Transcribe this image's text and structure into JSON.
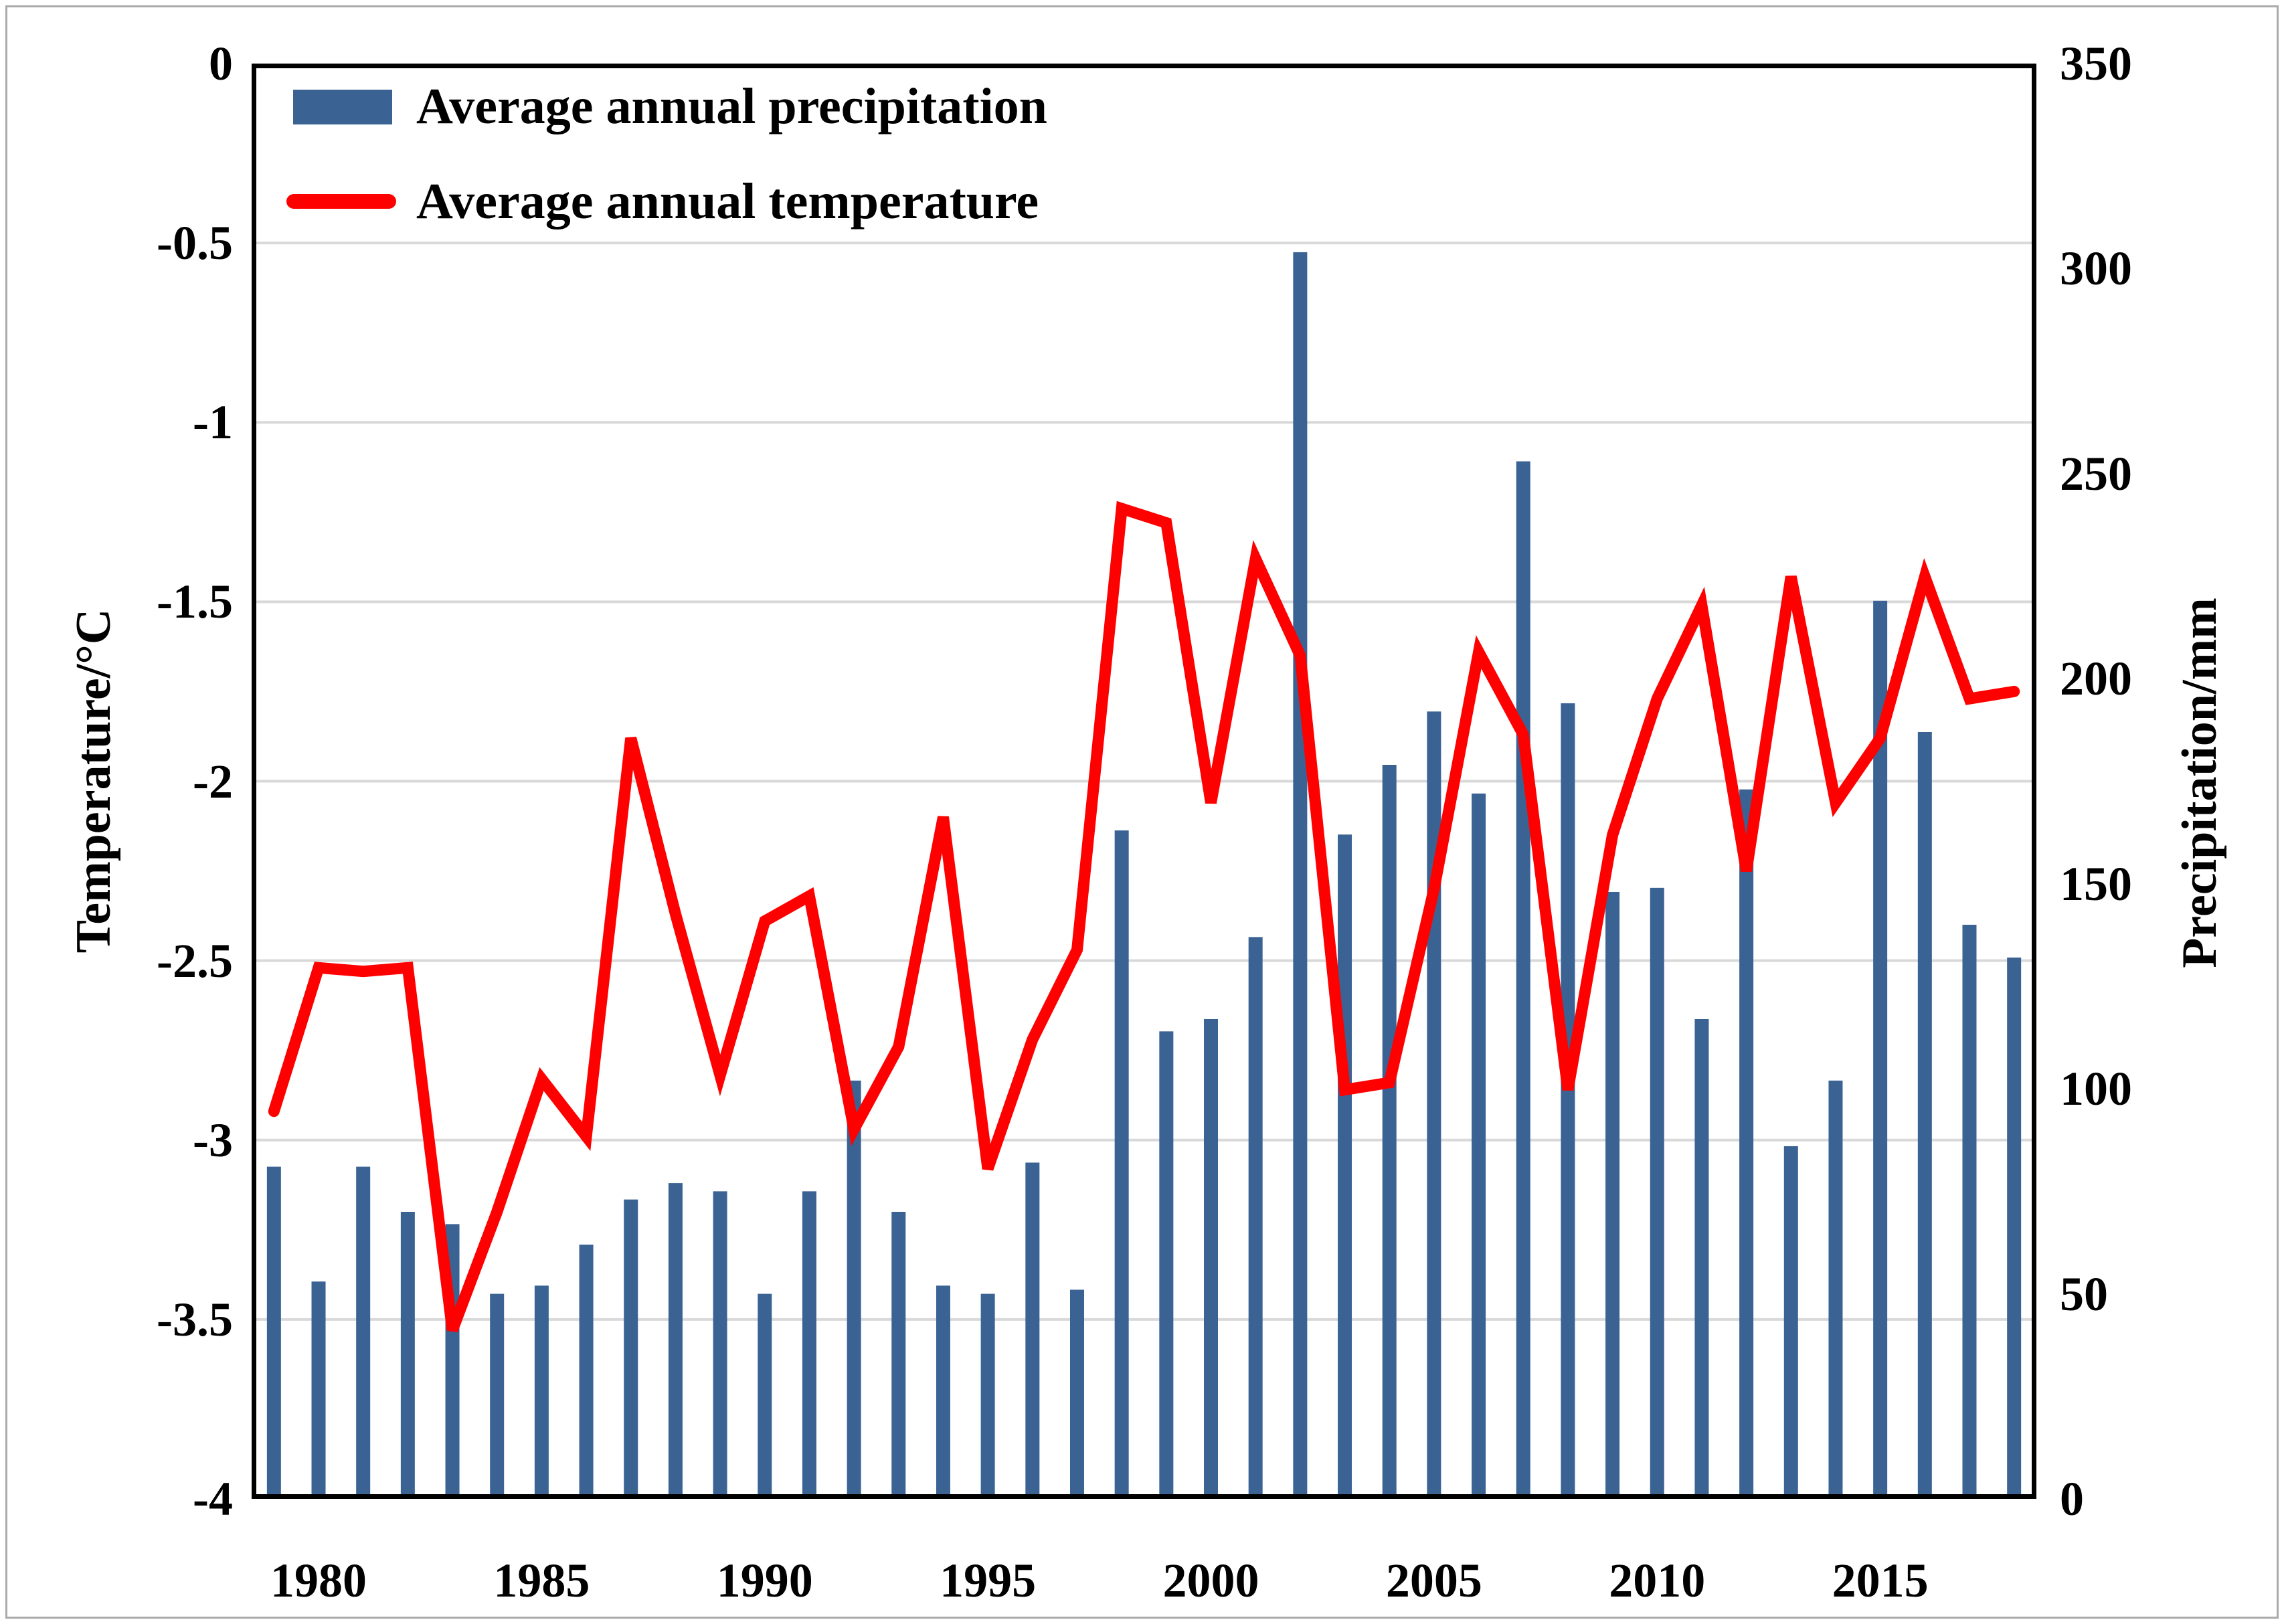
{
  "legend": {
    "precipitation_label": "Average annual precipitation",
    "temperature_label": "Average annual temperature"
  },
  "axes": {
    "left_title": "Temperature/°C",
    "right_title": "Precipitation/mm",
    "left_tick_labels": [
      "0",
      "-0.5",
      "-1",
      "-1.5",
      "-2",
      "-2.5",
      "-3",
      "-3.5",
      "-4"
    ],
    "right_tick_labels": [
      "350",
      "300",
      "250",
      "200",
      "150",
      "100",
      "50",
      "0"
    ],
    "x_tick_labels": [
      "1980",
      "1985",
      "1990",
      "1995",
      "2000",
      "2005",
      "2010",
      "2015"
    ]
  },
  "colors": {
    "bar": "#3A6394",
    "line": "#FF0000",
    "gridline": "#D9D9D9",
    "plot_border": "#000000",
    "text": "#000000"
  },
  "chart_data": {
    "type": "bar",
    "subtype": "dual-axis bar + line",
    "title": "",
    "x": [
      1979,
      1980,
      1981,
      1982,
      1983,
      1984,
      1985,
      1986,
      1987,
      1988,
      1989,
      1990,
      1991,
      1992,
      1993,
      1994,
      1995,
      1996,
      1997,
      1998,
      1999,
      2000,
      2001,
      2002,
      2003,
      2004,
      2005,
      2006,
      2007,
      2008,
      2009,
      2010,
      2011,
      2012,
      2013,
      2014,
      2015,
      2016,
      2017,
      2018
    ],
    "series": [
      {
        "name": "Average annual precipitation",
        "type": "bar",
        "axis": "right",
        "unit": "mm",
        "values": [
          81,
          53,
          81,
          70,
          67,
          50,
          52,
          62,
          73,
          77,
          75,
          50,
          75,
          102,
          70,
          52,
          50,
          82,
          51,
          163,
          114,
          117,
          137,
          304,
          162,
          179,
          192,
          172,
          253,
          194,
          148,
          149,
          117,
          173,
          86,
          102,
          219,
          187,
          140,
          132
        ]
      },
      {
        "name": "Average annual temperature",
        "type": "line",
        "axis": "left",
        "unit": "°C",
        "values": [
          -2.92,
          -2.52,
          -2.53,
          -2.52,
          -3.53,
          -3.2,
          -2.83,
          -2.99,
          -1.88,
          -2.37,
          -2.82,
          -2.39,
          -2.32,
          -2.97,
          -2.74,
          -2.1,
          -3.08,
          -2.72,
          -2.47,
          -1.24,
          -1.28,
          -2.06,
          -1.38,
          -1.65,
          -2.86,
          -2.84,
          -2.3,
          -1.64,
          -1.87,
          -2.86,
          -2.15,
          -1.77,
          -1.51,
          -2.25,
          -1.43,
          -2.06,
          -1.88,
          -1.43,
          -1.77,
          -1.75
        ]
      }
    ],
    "left_ylim": [
      -4,
      0
    ],
    "right_ylim": [
      0,
      350
    ],
    "left_tick_step": 0.5,
    "right_tick_step": 50,
    "grid": "horizontal only, every 0.5 °C",
    "legend_position": "top-left inside plot"
  }
}
